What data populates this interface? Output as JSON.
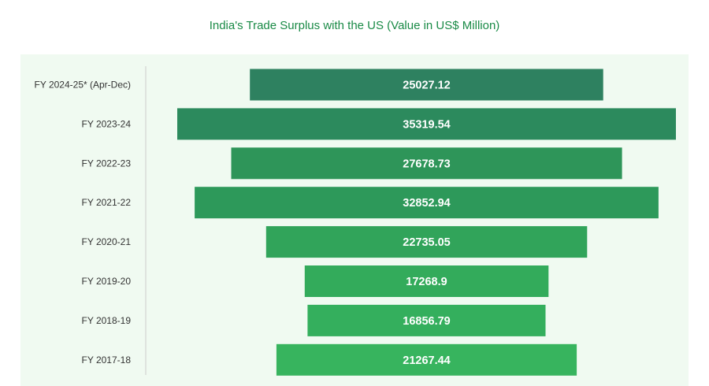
{
  "chart_data": {
    "type": "bar",
    "orientation": "horizontal",
    "style": "funnel-centered",
    "title": "India's Trade Surplus with the US (Value in US$ Million)",
    "categories": [
      "FY 2024-25* (Apr-Dec)",
      "FY 2023-24",
      "FY 2022-23",
      "FY 2021-22",
      "FY 2020-21",
      "FY 2019-20",
      "FY 2018-19",
      "FY 2017-18"
    ],
    "values": [
      25027.12,
      35319.54,
      27678.73,
      32852.94,
      22735.05,
      17268.9,
      16856.79,
      21267.44
    ],
    "value_labels": [
      "25027.12",
      "35319.54",
      "27678.73",
      "32852.94",
      "22735.05",
      "17268.9",
      "16856.79",
      "21267.44"
    ],
    "bar_colors": [
      "#2e8160",
      "#2c8a5d",
      "#2e9559",
      "#2d995a",
      "#31a45a",
      "#33ab5b",
      "#34af5d",
      "#37b45e"
    ],
    "colors": {
      "title": "#1a8a46",
      "background_panel": "#f0faf1",
      "axis_line": "#cccccc"
    }
  }
}
